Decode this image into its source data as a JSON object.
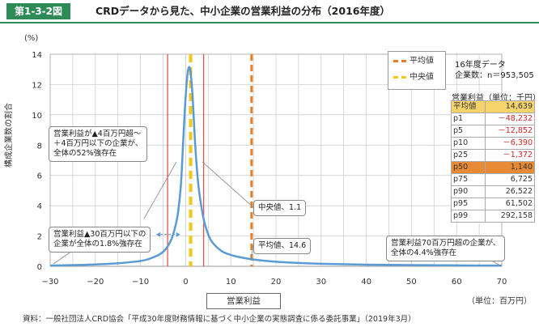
{
  "header": {
    "figure_id": "第1-3-2図",
    "title": "CRDデータから見た、中小企業の営業利益の分布（2016年度）"
  },
  "axis": {
    "y_unit": "(%)",
    "y_title": "構成企業数の割合",
    "x_title": "営業利益",
    "x_unit": "（単位：百万円）"
  },
  "legend": {
    "mean_label": "平均値",
    "median_label": "中央値"
  },
  "data_note": {
    "line1": "16年度データ",
    "line2": "企業数：n＝953,505"
  },
  "table": {
    "title": "営業利益（単位：千円）",
    "rows": [
      {
        "label": "平均値",
        "value": "14,639"
      },
      {
        "label": "p1",
        "value": "－48,232"
      },
      {
        "label": "p5",
        "value": "－12,852"
      },
      {
        "label": "p10",
        "value": "－6,390"
      },
      {
        "label": "p25",
        "value": "－1,372"
      },
      {
        "label": "p50",
        "value": "1,140"
      },
      {
        "label": "p75",
        "value": "6,725"
      },
      {
        "label": "p90",
        "value": "26,522"
      },
      {
        "label": "p95",
        "value": "61,502"
      },
      {
        "label": "p99",
        "value": "292,158"
      }
    ]
  },
  "callouts": {
    "range4": {
      "line1": "営業利益が▲4百万円超～",
      "line2": "＋4百万円以下の企業が、",
      "line3": "全体の52%強存在"
    },
    "loss30": {
      "line1": "営業利益▲30百万円以下の",
      "line2": "企業が全体の1.8%強存在"
    },
    "median": "中央値、1.1",
    "mean": "平均値、14.6",
    "profit70": {
      "line1": "営業利益70百万円超の企業が、",
      "line2": "全体の4.4%強存在"
    }
  },
  "source": "資料：一般社団法人CRD協会「平成30年度財務情報に基づく中小企業の実態調査に係る委託事業」（2019年3月）",
  "colors": {
    "accent": "#2e8b57",
    "curve": "#5b9bd5",
    "mean_line": "#e87d2a",
    "median_line": "#f5c518",
    "red_line": "#e02020",
    "grid": "#c8c8c8"
  },
  "chart_data": {
    "type": "line",
    "title": "CRDデータから見た、中小企業の営業利益の分布（2016年度）",
    "xlabel": "営業利益",
    "ylabel": "構成企業数の割合",
    "x_unit": "百万円",
    "y_unit": "%",
    "xlim": [
      -30,
      70
    ],
    "ylim": [
      0,
      14
    ],
    "x_ticks": [
      -30,
      -20,
      -10,
      0,
      10,
      20,
      30,
      40,
      50,
      60,
      70
    ],
    "y_ticks": [
      0,
      2,
      4,
      6,
      8,
      10,
      12,
      14
    ],
    "grid": true,
    "legend_position": "top-right",
    "series": [
      {
        "name": "",
        "x": [
          -30,
          -25,
          -20,
          -15,
          -10,
          -8,
          -6,
          -5,
          -4,
          -3,
          -2,
          -1.5,
          -1,
          -0.5,
          0,
          0.5,
          1,
          1.5,
          2,
          2.5,
          3,
          4,
          5,
          6,
          8,
          10,
          12,
          15,
          20,
          25,
          30,
          40,
          50,
          60,
          70
        ],
        "y": [
          0.05,
          0.08,
          0.12,
          0.2,
          0.35,
          0.5,
          0.75,
          0.95,
          1.3,
          1.9,
          3.0,
          4.0,
          5.6,
          8.5,
          11.2,
          12.9,
          13.0,
          11.4,
          8.6,
          6.4,
          4.9,
          3.1,
          2.1,
          1.55,
          1.0,
          0.75,
          0.6,
          0.45,
          0.3,
          0.22,
          0.17,
          0.11,
          0.08,
          0.06,
          0.05
        ]
      }
    ],
    "vertical_lines": [
      {
        "x": 14.6,
        "name": "平均値"
      },
      {
        "x": 1.1,
        "name": "中央値"
      },
      {
        "x": -4,
        "name": ""
      },
      {
        "x": 4,
        "name": ""
      }
    ]
  }
}
